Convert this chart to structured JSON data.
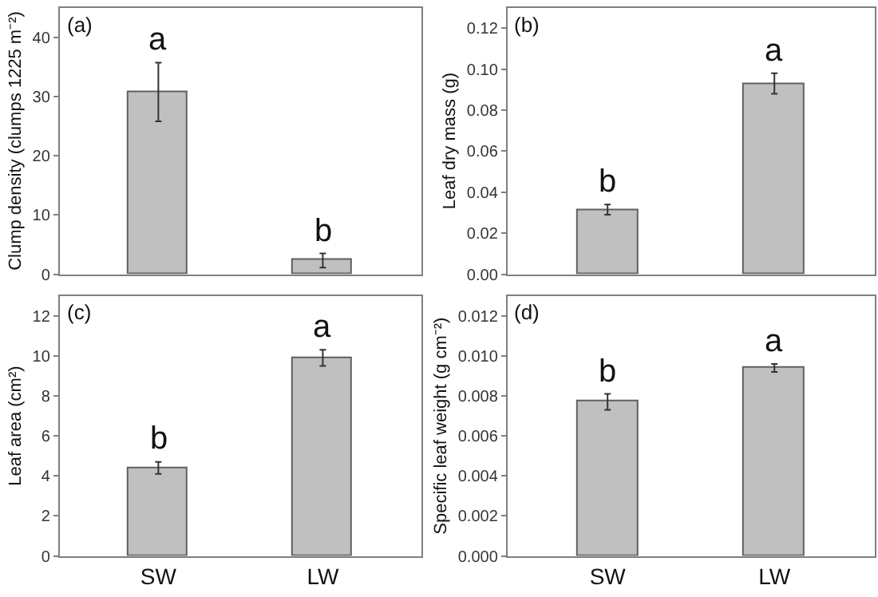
{
  "chart_data": [
    {
      "type": "bar",
      "categories": [
        "SW",
        "LW"
      ],
      "values": [
        30.6,
        2.3
      ],
      "errors": [
        [
          25.8,
          35.7
        ],
        [
          1.1,
          3.5
        ]
      ],
      "color": "#c0c0c0",
      "ylabel": "Clump density (clumps 1225 m⁻²)",
      "ylim": [
        0,
        45
      ],
      "yticks": [
        0,
        10,
        20,
        30,
        40
      ],
      "tick_labels": "y",
      "annotations": [
        "(a)",
        {
          "text": "a",
          "x": "SW",
          "y": 35.7
        },
        {
          "text": "b",
          "x": "LW",
          "y": 3.5
        }
      ]
    },
    {
      "type": "bar",
      "categories": [
        "SW",
        "LW"
      ],
      "values": [
        0.031,
        0.093
      ],
      "errors": [
        [
          0.029,
          0.034
        ],
        [
          0.088,
          0.098
        ]
      ],
      "color": "#c0c0c0",
      "ylabel": "Leaf dry mass (g)",
      "ylim": [
        0,
        0.13
      ],
      "yticks": [
        {
          "value": 0,
          "label": "0.00"
        },
        {
          "value": 0.02,
          "label": "0.02"
        },
        {
          "value": 0.04,
          "label": "0.04"
        },
        {
          "value": 0.06,
          "label": "0.06"
        },
        {
          "value": 0.08,
          "label": "0.08"
        },
        {
          "value": 0.1,
          "label": "0.10"
        },
        {
          "value": 0.12,
          "label": "0.12"
        }
      ],
      "tick_labels": "y",
      "annotations": [
        "(b)",
        {
          "text": "b",
          "x": "SW",
          "y": 0.034
        },
        {
          "text": "a",
          "x": "LW",
          "y": 0.098
        }
      ]
    },
    {
      "type": "bar",
      "categories": [
        "SW",
        "LW"
      ],
      "values": [
        4.4,
        9.9
      ],
      "errors": [
        [
          4.1,
          4.7
        ],
        [
          9.5,
          10.3
        ]
      ],
      "color": "#c0c0c0",
      "ylabel": "Leaf area (cm²)",
      "ylim": [
        0,
        13
      ],
      "yticks": [
        0,
        2,
        4,
        6,
        8,
        10,
        12
      ],
      "annotations": [
        "(c)",
        {
          "text": "b",
          "x": "SW",
          "y": 4.7
        },
        {
          "text": "a",
          "x": "LW",
          "y": 10.3
        }
      ]
    },
    {
      "type": "bar",
      "categories": [
        "SW",
        "LW"
      ],
      "values": [
        0.0077,
        0.0094
      ],
      "errors": [
        [
          0.0073,
          0.0081
        ],
        [
          0.0092,
          0.0096
        ]
      ],
      "color": "#c0c0c0",
      "ylabel": "Specific leaf weight (g cm⁻²)",
      "ylim": [
        0,
        0.013
      ],
      "yticks": [
        {
          "value": 0,
          "label": "0.000"
        },
        {
          "value": 0.002,
          "label": "0.002"
        },
        {
          "value": 0.004,
          "label": "0.004"
        },
        {
          "value": 0.006,
          "label": "0.006"
        },
        {
          "value": 0.008,
          "label": "0.008"
        },
        {
          "value": 0.01,
          "label": "0.010"
        },
        {
          "value": 0.012,
          "label": "0.012"
        }
      ],
      "annotations": [
        "(d)",
        {
          "text": "b",
          "x": "SW",
          "y": 0.0081
        },
        {
          "text": "a",
          "x": "LW",
          "y": 0.0096
        }
      ]
    }
  ]
}
